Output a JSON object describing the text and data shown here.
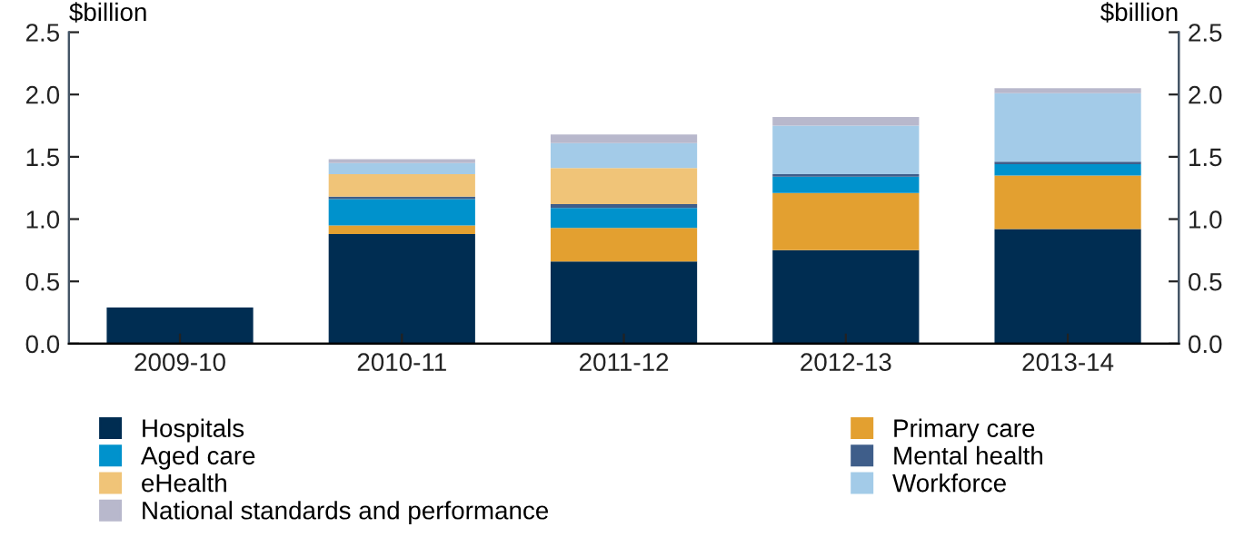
{
  "chart_data": {
    "type": "bar",
    "stacked": true,
    "categories": [
      "2009-10",
      "2010-11",
      "2011-12",
      "2012-13",
      "2013-14"
    ],
    "series": [
      {
        "name": "Hospitals",
        "color": "#002d52",
        "values": [
          0.29,
          0.88,
          0.66,
          0.75,
          0.92
        ]
      },
      {
        "name": "Primary care",
        "color": "#e3a030",
        "values": [
          null,
          0.07,
          0.27,
          0.46,
          0.43
        ]
      },
      {
        "name": "Aged care",
        "color": "#0092cc",
        "values": [
          null,
          0.21,
          0.16,
          0.13,
          0.09
        ]
      },
      {
        "name": "Mental health",
        "color": "#3f5e8a",
        "values": [
          null,
          0.02,
          0.03,
          0.02,
          0.02
        ]
      },
      {
        "name": "eHealth",
        "color": "#f0c478",
        "values": [
          null,
          0.18,
          0.29,
          null,
          null
        ]
      },
      {
        "name": "Workforce",
        "color": "#a3cbe8",
        "values": [
          null,
          0.09,
          0.2,
          0.39,
          0.55
        ]
      },
      {
        "name": "National standards and performance",
        "color": "#b8b8cc",
        "values": [
          null,
          0.03,
          0.07,
          0.07,
          0.04
        ]
      }
    ],
    "ylabel": "$billion",
    "y2label": "$billion",
    "ylim": [
      0,
      2.5
    ],
    "y2lim": [
      0,
      2.5
    ],
    "yticks": [
      {
        "value": 0,
        "label": "0.0"
      },
      0.5,
      {
        "value": 1,
        "label": "1.0"
      },
      1.5,
      {
        "value": 2,
        "label": "2.0"
      },
      2.5
    ],
    "y2ticks": [
      {
        "value": 0,
        "label": "0.0"
      },
      0.5,
      {
        "value": 1,
        "label": "1.0"
      },
      1.5,
      {
        "value": 2,
        "label": "2.0"
      },
      2.5
    ],
    "grid": false,
    "legend": "bottom"
  }
}
